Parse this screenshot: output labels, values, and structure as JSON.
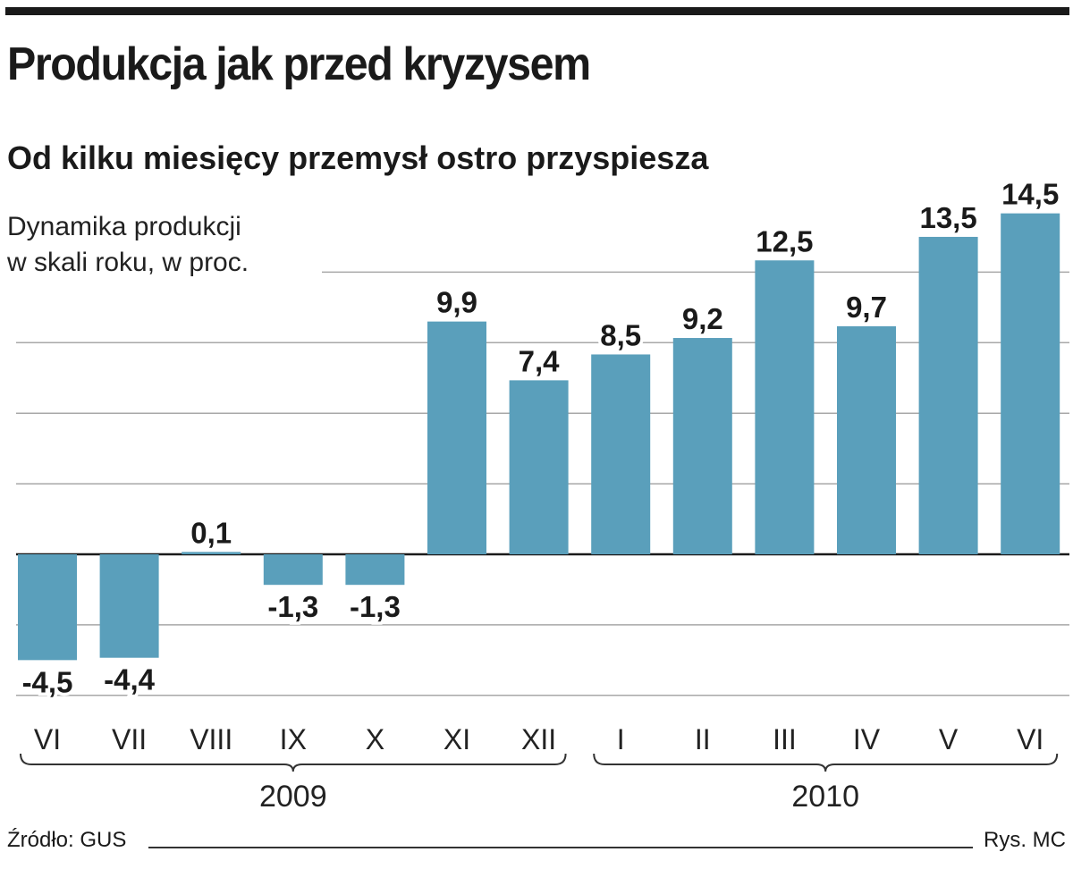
{
  "title": "Produkcja jak przed kryzysem",
  "subtitle": "Od kilku miesięcy przemysł ostro przyspiesza",
  "ylabel_line1": "Dynamika produkcji",
  "ylabel_line2": "w skali roku, w proc.",
  "source": "Źródło: GUS",
  "credit": "Rys. MC",
  "colors": {
    "bar": "#5a9fbb",
    "text": "#1a1a1a",
    "grid": "#a8a8a8"
  },
  "chart_data": {
    "type": "bar",
    "categories": [
      "VI",
      "VII",
      "VIII",
      "IX",
      "X",
      "XI",
      "XII",
      "I",
      "II",
      "III",
      "IV",
      "V",
      "VI"
    ],
    "values": [
      -4.5,
      -4.4,
      0.1,
      -1.3,
      -1.3,
      9.9,
      7.4,
      8.5,
      9.2,
      12.5,
      9.7,
      13.5,
      14.5
    ],
    "value_labels": [
      "-4,5",
      "-4,4",
      "0,1",
      "-1,3",
      "-1,3",
      "9,9",
      "7,4",
      "8,5",
      "9,2",
      "12,5",
      "9,7",
      "13,5",
      "14,5"
    ],
    "year_groups": [
      {
        "label": "2009",
        "from": 0,
        "to": 6
      },
      {
        "label": "2010",
        "from": 7,
        "to": 12
      }
    ],
    "ylim": [
      -6,
      15
    ],
    "gridlines": [
      -6,
      -3,
      3,
      6,
      9,
      12
    ],
    "grid": true,
    "legend": "none"
  }
}
